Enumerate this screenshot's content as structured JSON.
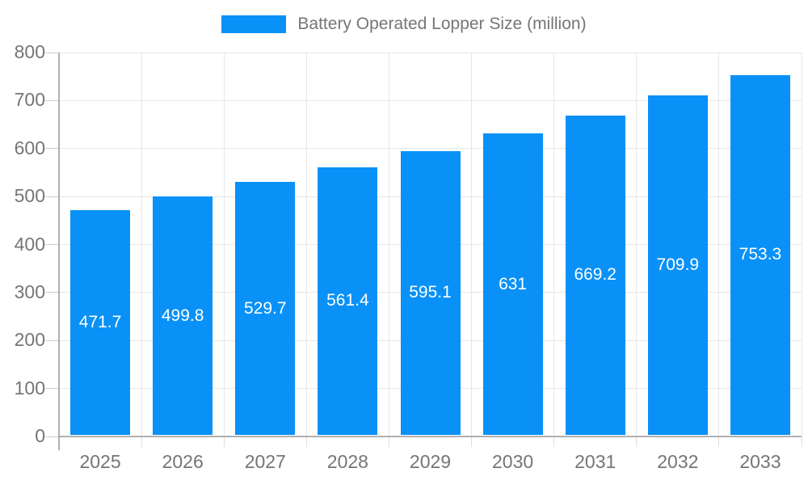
{
  "chart_data": {
    "type": "bar",
    "title": "Battery Operated Lopper Size (million)",
    "legend_label": "Battery Operated Lopper Size (million)",
    "categories": [
      "2025",
      "2026",
      "2027",
      "2028",
      "2029",
      "2030",
      "2031",
      "2032",
      "2033"
    ],
    "series": [
      {
        "name": "Battery Operated Lopper Size (million)",
        "values": [
          471.7,
          499.8,
          529.7,
          561.4,
          595.1,
          631,
          669.2,
          709.9,
          753.3
        ],
        "value_labels": [
          "471.7",
          "499.8",
          "529.7",
          "561.4",
          "595.1",
          "631",
          "669.2",
          "709.9",
          "753.3"
        ]
      }
    ],
    "xlabel": "",
    "ylabel": "",
    "ylim": [
      0,
      800
    ],
    "ytick_step": 100,
    "ytick_labels": [
      "0",
      "100",
      "200",
      "300",
      "400",
      "500",
      "600",
      "700",
      "800"
    ],
    "grid": "on",
    "legend_position": "top-center",
    "colors": {
      "bar": "#0991f7",
      "axis_text": "#757575",
      "value_text": "#ffffff",
      "gridline": "#e6e6e6",
      "axis_line": "#b0b0b0"
    }
  }
}
